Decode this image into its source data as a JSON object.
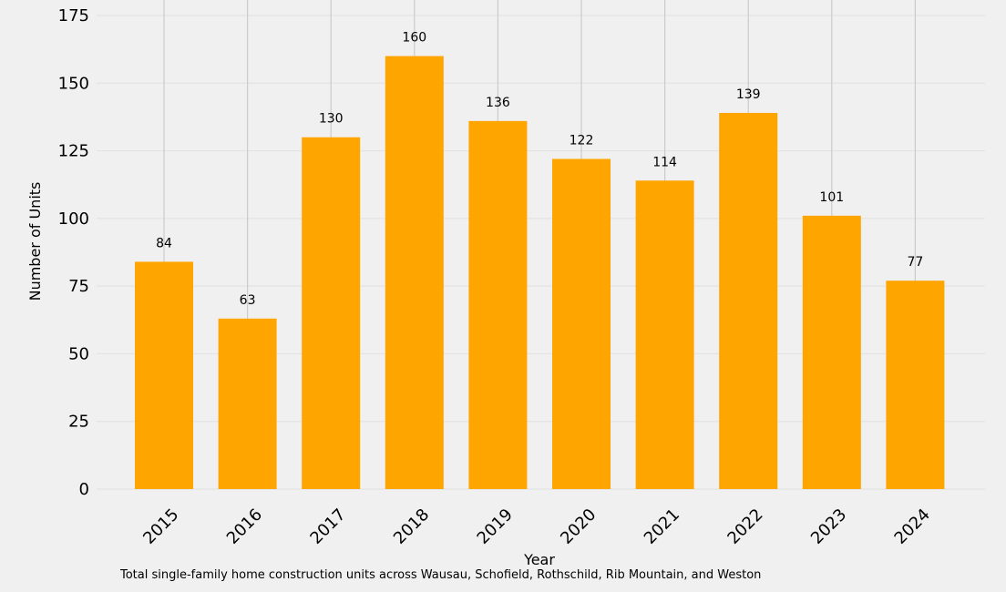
{
  "chart_data": {
    "type": "bar",
    "categories": [
      "2015",
      "2016",
      "2017",
      "2018",
      "2019",
      "2020",
      "2021",
      "2022",
      "2023",
      "2024"
    ],
    "values": [
      84,
      63,
      130,
      160,
      136,
      122,
      114,
      139,
      101,
      77
    ],
    "data_labels": [
      "84",
      "63",
      "130",
      "160",
      "136",
      "122",
      "114",
      "139",
      "101",
      "77"
    ],
    "title": "",
    "xlabel": "Year",
    "ylabel": "Number of Units",
    "ylim": [
      0,
      175
    ],
    "yticks": [
      0,
      25,
      50,
      75,
      100,
      125,
      150,
      175
    ],
    "ytick_labels": [
      "0",
      "25",
      "50",
      "75",
      "100",
      "125",
      "150",
      "175"
    ],
    "grid": true,
    "legend": "none",
    "bar_color": "#ffa500",
    "caption": "Total single-family home construction units across Wausau, Schofield, Rothschild, Rib Mountain, and Weston"
  }
}
